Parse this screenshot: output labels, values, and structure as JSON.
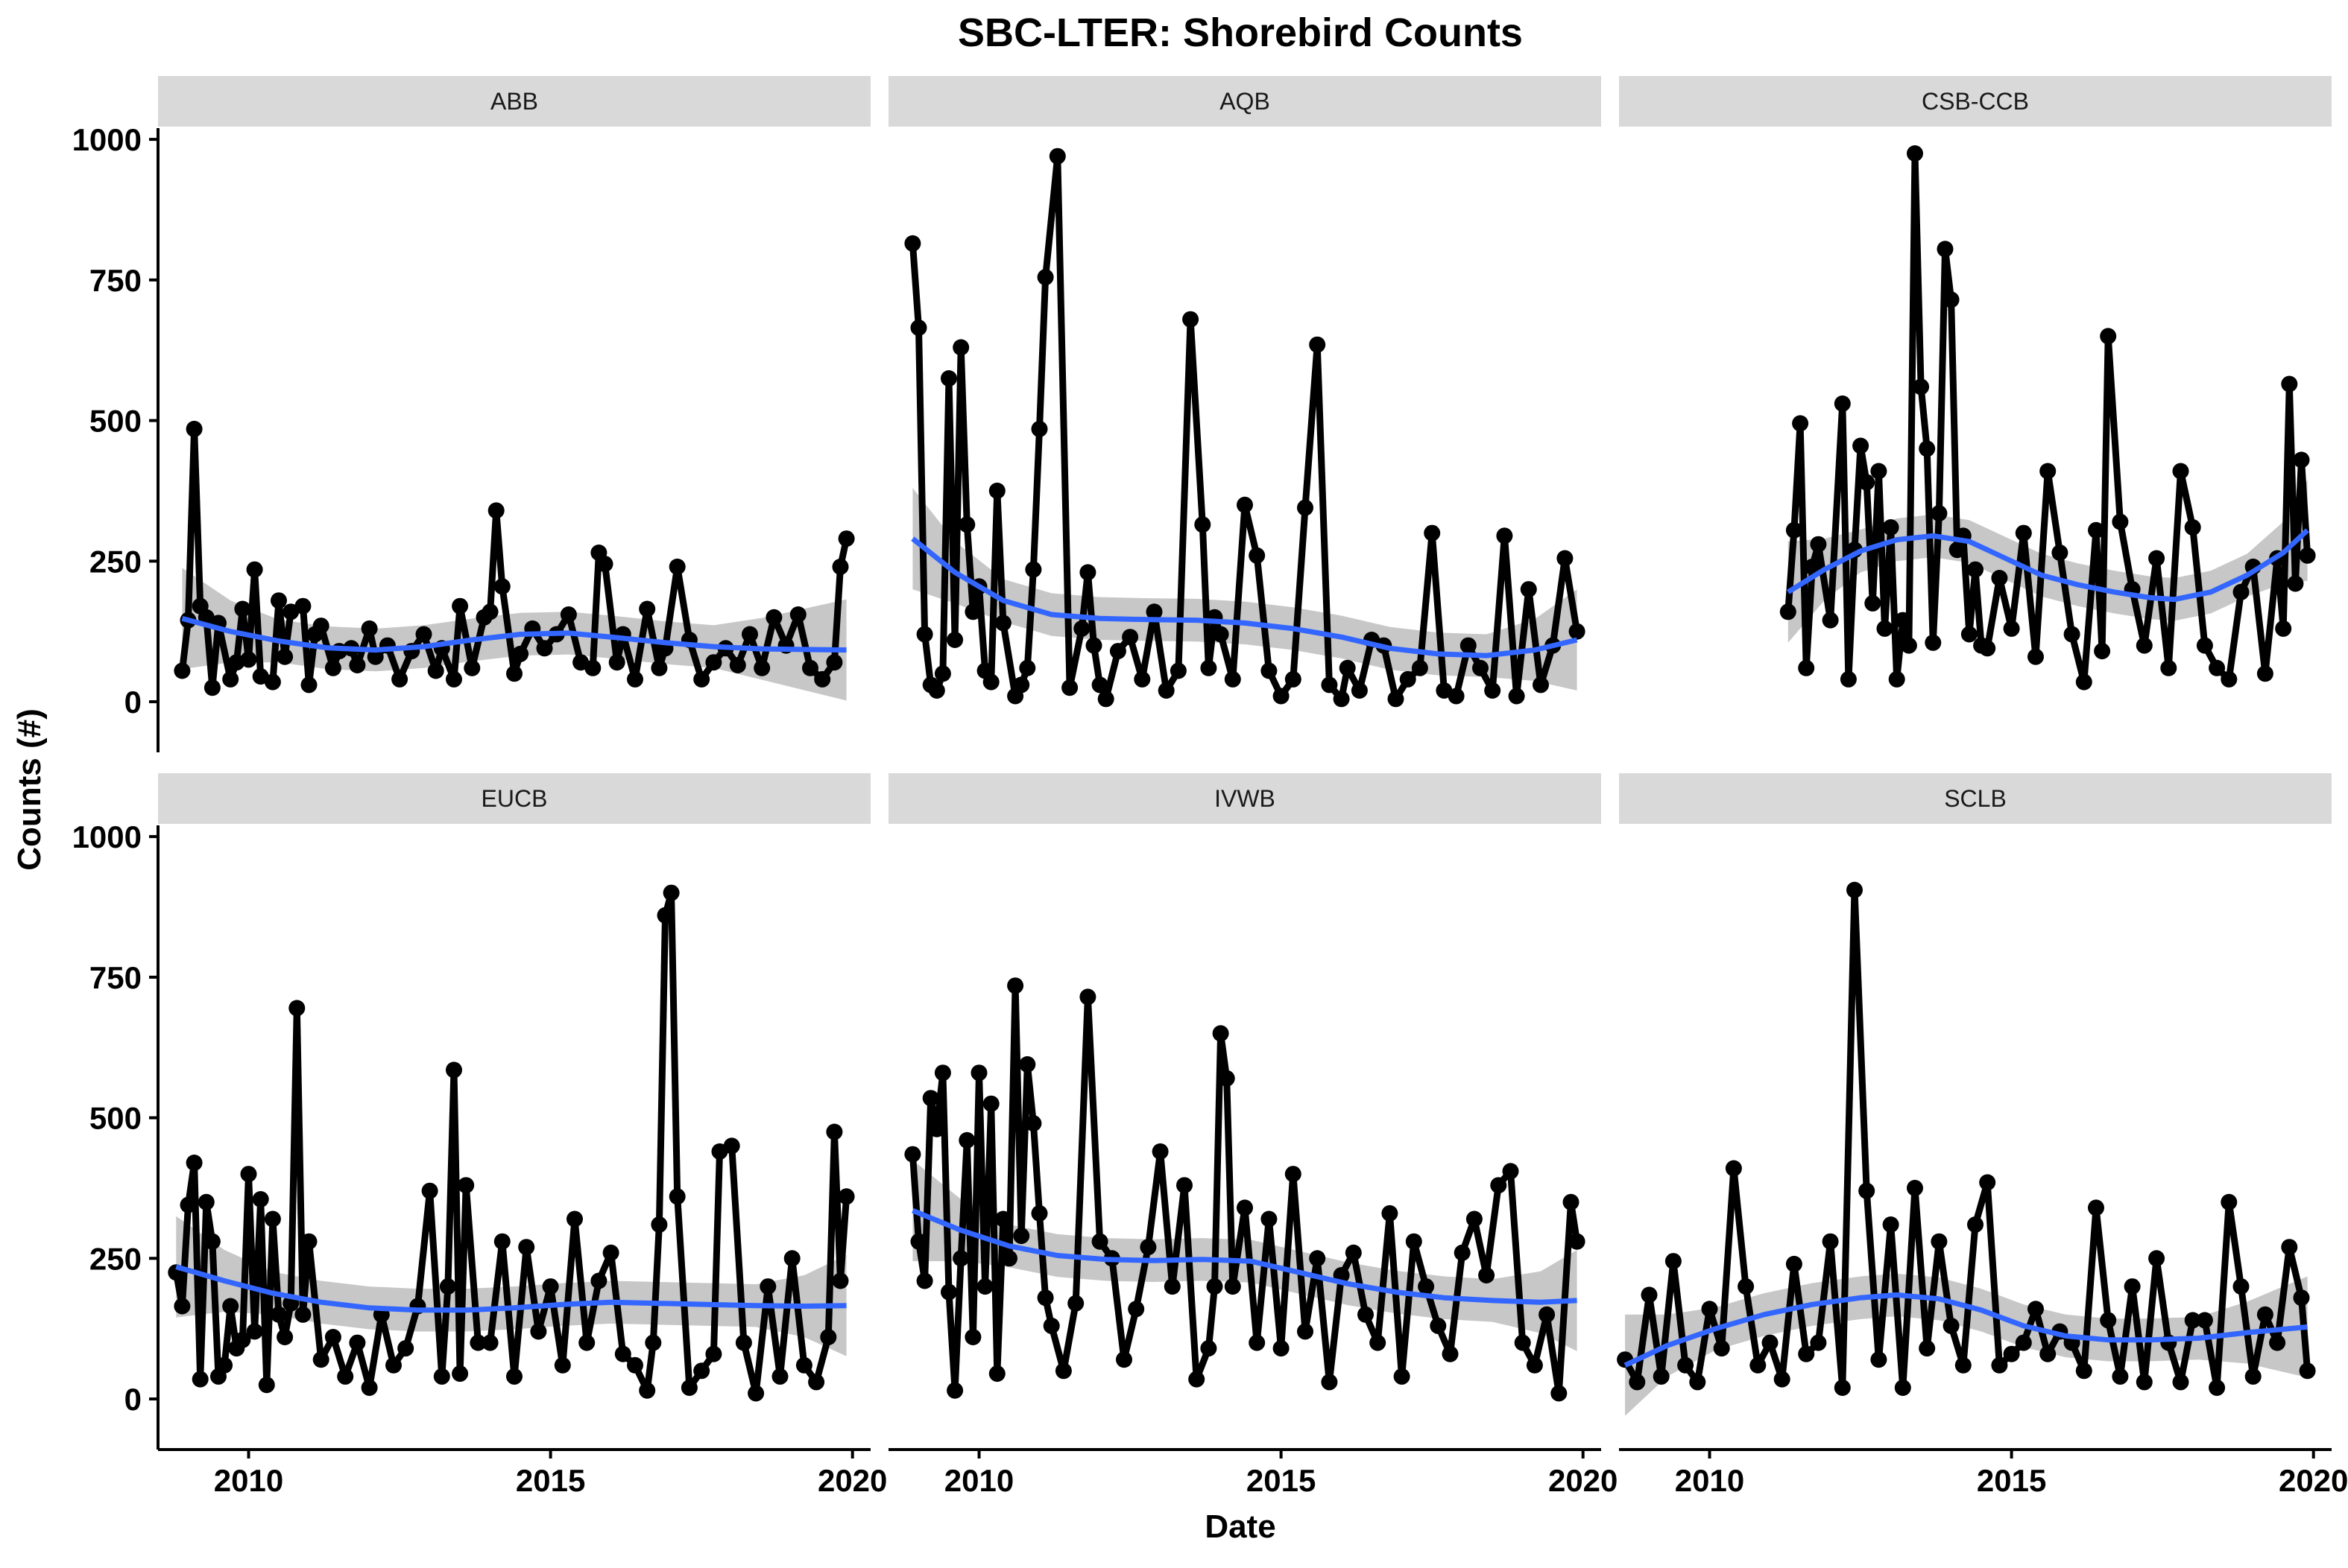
{
  "chart_data": {
    "type": "line",
    "title": "SBC-LTER: Shorebird Counts",
    "xlabel": "Date",
    "ylabel": "Counts (#)",
    "xlim": [
      2008.5,
      2020.3
    ],
    "ylim": [
      -90,
      1020
    ],
    "x_ticks": [
      2010,
      2015,
      2020
    ],
    "y_ticks": [
      0,
      250,
      500,
      750,
      1000
    ],
    "grid": false,
    "colors": {
      "points": "#000000",
      "line": "#000000",
      "smooth": "#3366ff",
      "ribbon": "#999999",
      "strip": "#d9d9d9"
    },
    "facets": [
      {
        "name": "ABB",
        "x": [
          2008.9,
          2009.0,
          2009.1,
          2009.2,
          2009.3,
          2009.4,
          2009.5,
          2009.7,
          2009.8,
          2009.9,
          2010.0,
          2010.1,
          2010.2,
          2010.4,
          2010.5,
          2010.6,
          2010.7,
          2010.9,
          2011.0,
          2011.1,
          2011.2,
          2011.4,
          2011.5,
          2011.7,
          2011.8,
          2012.0,
          2012.1,
          2012.3,
          2012.5,
          2012.7,
          2012.9,
          2013.1,
          2013.2,
          2013.4,
          2013.5,
          2013.7,
          2013.9,
          2014.0,
          2014.1,
          2014.2,
          2014.4,
          2014.5,
          2014.7,
          2014.9,
          2015.1,
          2015.3,
          2015.5,
          2015.7,
          2015.8,
          2015.9,
          2016.1,
          2016.2,
          2016.4,
          2016.6,
          2016.8,
          2016.9,
          2017.1,
          2017.3,
          2017.5,
          2017.7,
          2017.9,
          2018.1,
          2018.3,
          2018.5,
          2018.7,
          2018.9,
          2019.1,
          2019.3,
          2019.5,
          2019.7,
          2019.8,
          2019.9
        ],
        "y": [
          55,
          145,
          485,
          170,
          150,
          25,
          140,
          40,
          70,
          165,
          75,
          235,
          45,
          35,
          180,
          80,
          160,
          170,
          30,
          120,
          135,
          60,
          90,
          95,
          65,
          130,
          80,
          100,
          40,
          90,
          120,
          55,
          95,
          40,
          170,
          60,
          150,
          160,
          340,
          205,
          50,
          85,
          130,
          95,
          120,
          155,
          70,
          60,
          265,
          245,
          70,
          120,
          40,
          165,
          60,
          95,
          240,
          110,
          40,
          70,
          95,
          65,
          120,
          60,
          150,
          100,
          155,
          60,
          40,
          70,
          240,
          290
        ],
        "smooth": [
          148,
          125,
          108,
          96,
          92,
          98,
          110,
          120,
          122,
          114,
          105,
          98,
          94,
          92
        ],
        "smooth_x": [
          2008.9,
          2009.7,
          2010.5,
          2011.3,
          2012.1,
          2012.9,
          2013.7,
          2014.5,
          2015.3,
          2016.1,
          2016.9,
          2017.7,
          2018.5,
          2019.9
        ]
      },
      {
        "name": "AQB",
        "x": [
          2008.9,
          2009.0,
          2009.1,
          2009.2,
          2009.3,
          2009.4,
          2009.5,
          2009.6,
          2009.7,
          2009.8,
          2009.9,
          2010.0,
          2010.1,
          2010.2,
          2010.3,
          2010.4,
          2010.6,
          2010.7,
          2010.8,
          2010.9,
          2011.0,
          2011.1,
          2011.3,
          2011.5,
          2011.7,
          2011.8,
          2011.9,
          2012.0,
          2012.1,
          2012.3,
          2012.5,
          2012.7,
          2012.9,
          2013.1,
          2013.3,
          2013.5,
          2013.7,
          2013.8,
          2013.9,
          2014.0,
          2014.2,
          2014.4,
          2014.6,
          2014.8,
          2015.0,
          2015.2,
          2015.4,
          2015.6,
          2015.8,
          2016.0,
          2016.1,
          2016.3,
          2016.5,
          2016.7,
          2016.9,
          2017.1,
          2017.3,
          2017.5,
          2017.7,
          2017.9,
          2018.1,
          2018.3,
          2018.5,
          2018.7,
          2018.9,
          2019.1,
          2019.3,
          2019.5,
          2019.7,
          2019.9
        ],
        "y": [
          815,
          665,
          120,
          30,
          20,
          50,
          575,
          110,
          630,
          315,
          160,
          205,
          55,
          35,
          375,
          140,
          10,
          30,
          60,
          235,
          485,
          755,
          970,
          25,
          130,
          230,
          100,
          30,
          5,
          90,
          115,
          40,
          160,
          20,
          55,
          680,
          315,
          60,
          150,
          120,
          40,
          350,
          260,
          55,
          10,
          40,
          345,
          635,
          30,
          5,
          60,
          20,
          110,
          100,
          5,
          40,
          60,
          300,
          20,
          10,
          100,
          60,
          20,
          295,
          10,
          200,
          30,
          100,
          255,
          125
        ],
        "smooth": [
          290,
          230,
          180,
          155,
          148,
          146,
          145,
          140,
          130,
          115,
          95,
          85,
          82,
          92,
          110
        ],
        "smooth_x": [
          2008.9,
          2009.6,
          2010.4,
          2011.2,
          2012.0,
          2012.8,
          2013.6,
          2014.4,
          2015.2,
          2016.0,
          2016.8,
          2017.6,
          2018.4,
          2019.2,
          2019.9
        ]
      },
      {
        "name": "CSB-CCB",
        "x": [
          2011.3,
          2011.4,
          2011.5,
          2011.6,
          2011.7,
          2011.8,
          2012.0,
          2012.2,
          2012.3,
          2012.4,
          2012.5,
          2012.6,
          2012.7,
          2012.8,
          2012.9,
          2013.0,
          2013.1,
          2013.2,
          2013.3,
          2013.4,
          2013.5,
          2013.6,
          2013.7,
          2013.8,
          2013.9,
          2014.0,
          2014.1,
          2014.2,
          2014.3,
          2014.4,
          2014.5,
          2014.6,
          2014.8,
          2015.0,
          2015.2,
          2015.4,
          2015.6,
          2015.8,
          2016.0,
          2016.2,
          2016.4,
          2016.5,
          2016.6,
          2016.8,
          2017.0,
          2017.2,
          2017.4,
          2017.6,
          2017.8,
          2018.0,
          2018.2,
          2018.4,
          2018.6,
          2018.8,
          2019.0,
          2019.2,
          2019.4,
          2019.5,
          2019.6,
          2019.7,
          2019.8,
          2019.9
        ],
        "y": [
          160,
          305,
          495,
          60,
          240,
          280,
          145,
          530,
          40,
          270,
          455,
          390,
          175,
          410,
          130,
          310,
          40,
          145,
          100,
          975,
          560,
          450,
          105,
          335,
          805,
          715,
          270,
          295,
          120,
          235,
          100,
          95,
          220,
          130,
          300,
          80,
          410,
          265,
          120,
          35,
          305,
          90,
          650,
          320,
          200,
          100,
          255,
          60,
          410,
          310,
          100,
          60,
          40,
          195,
          240,
          50,
          255,
          130,
          565,
          210,
          430,
          260
        ],
        "smooth": [
          195,
          235,
          268,
          288,
          295,
          285,
          255,
          225,
          208,
          195,
          185,
          182,
          195,
          225,
          265,
          305
        ],
        "smooth_x": [
          2011.3,
          2011.9,
          2012.5,
          2013.1,
          2013.7,
          2014.3,
          2014.9,
          2015.5,
          2016.1,
          2016.7,
          2017.3,
          2017.7,
          2018.3,
          2018.9,
          2019.5,
          2019.9
        ]
      },
      {
        "name": "EUCB",
        "x": [
          2008.8,
          2008.9,
          2009.0,
          2009.1,
          2009.2,
          2009.3,
          2009.4,
          2009.5,
          2009.6,
          2009.7,
          2009.8,
          2009.9,
          2010.0,
          2010.1,
          2010.2,
          2010.3,
          2010.4,
          2010.5,
          2010.6,
          2010.7,
          2010.8,
          2010.9,
          2011.0,
          2011.2,
          2011.4,
          2011.6,
          2011.8,
          2012.0,
          2012.2,
          2012.4,
          2012.6,
          2012.8,
          2013.0,
          2013.2,
          2013.3,
          2013.4,
          2013.5,
          2013.6,
          2013.8,
          2014.0,
          2014.2,
          2014.4,
          2014.6,
          2014.8,
          2015.0,
          2015.2,
          2015.4,
          2015.6,
          2015.8,
          2016.0,
          2016.2,
          2016.4,
          2016.6,
          2016.7,
          2016.8,
          2016.9,
          2017.0,
          2017.1,
          2017.3,
          2017.5,
          2017.7,
          2017.8,
          2018.0,
          2018.2,
          2018.4,
          2018.6,
          2018.8,
          2019.0,
          2019.2,
          2019.4,
          2019.6,
          2019.7,
          2019.8,
          2019.9
        ],
        "y": [
          225,
          165,
          345,
          420,
          35,
          350,
          280,
          40,
          60,
          165,
          90,
          105,
          400,
          120,
          355,
          25,
          320,
          150,
          110,
          170,
          695,
          150,
          280,
          70,
          110,
          40,
          100,
          20,
          150,
          60,
          90,
          165,
          370,
          40,
          200,
          585,
          45,
          380,
          100,
          100,
          280,
          40,
          270,
          120,
          200,
          60,
          320,
          100,
          210,
          260,
          80,
          60,
          15,
          100,
          310,
          860,
          900,
          360,
          20,
          50,
          80,
          440,
          450,
          100,
          10,
          200,
          40,
          250,
          60,
          30,
          110,
          475,
          210,
          360
        ],
        "smooth": [
          235,
          210,
          188,
          172,
          162,
          158,
          158,
          162,
          168,
          172,
          170,
          168,
          166,
          165,
          166
        ],
        "smooth_x": [
          2008.8,
          2009.6,
          2010.4,
          2011.2,
          2012.0,
          2012.8,
          2013.6,
          2014.4,
          2015.2,
          2016.0,
          2016.8,
          2017.6,
          2018.4,
          2019.2,
          2019.9
        ]
      },
      {
        "name": "IVWB",
        "x": [
          2008.9,
          2009.0,
          2009.1,
          2009.2,
          2009.3,
          2009.4,
          2009.5,
          2009.6,
          2009.7,
          2009.8,
          2009.9,
          2010.0,
          2010.1,
          2010.2,
          2010.3,
          2010.4,
          2010.5,
          2010.6,
          2010.7,
          2010.8,
          2010.9,
          2011.0,
          2011.1,
          2011.2,
          2011.4,
          2011.6,
          2011.8,
          2012.0,
          2012.2,
          2012.4,
          2012.6,
          2012.8,
          2013.0,
          2013.2,
          2013.4,
          2013.6,
          2013.8,
          2013.9,
          2014.0,
          2014.1,
          2014.2,
          2014.4,
          2014.6,
          2014.8,
          2015.0,
          2015.2,
          2015.4,
          2015.6,
          2015.8,
          2016.0,
          2016.2,
          2016.4,
          2016.6,
          2016.8,
          2017.0,
          2017.2,
          2017.4,
          2017.6,
          2017.8,
          2018.0,
          2018.2,
          2018.4,
          2018.6,
          2018.8,
          2019.0,
          2019.2,
          2019.4,
          2019.6,
          2019.8,
          2019.9
        ],
        "y": [
          435,
          280,
          210,
          535,
          480,
          580,
          190,
          15,
          250,
          460,
          110,
          580,
          200,
          525,
          45,
          320,
          250,
          735,
          290,
          595,
          490,
          330,
          180,
          130,
          50,
          170,
          715,
          280,
          250,
          70,
          160,
          270,
          440,
          200,
          380,
          35,
          90,
          200,
          650,
          570,
          200,
          340,
          100,
          320,
          90,
          400,
          120,
          250,
          30,
          220,
          260,
          150,
          100,
          330,
          40,
          280,
          200,
          130,
          80,
          260,
          320,
          220,
          380,
          405,
          100,
          60,
          150,
          10,
          350,
          280
        ],
        "smooth": [
          335,
          300,
          272,
          255,
          248,
          246,
          248,
          245,
          225,
          205,
          190,
          180,
          175,
          172,
          175
        ],
        "smooth_x": [
          2008.9,
          2009.7,
          2010.5,
          2011.3,
          2012.1,
          2012.9,
          2013.7,
          2014.5,
          2015.3,
          2016.1,
          2016.9,
          2017.7,
          2018.5,
          2019.3,
          2019.9
        ]
      },
      {
        "name": "SCLB",
        "x": [
          2008.6,
          2008.8,
          2009.0,
          2009.2,
          2009.4,
          2009.6,
          2009.8,
          2010.0,
          2010.2,
          2010.4,
          2010.6,
          2010.8,
          2011.0,
          2011.2,
          2011.4,
          2011.6,
          2011.8,
          2012.0,
          2012.2,
          2012.4,
          2012.6,
          2012.8,
          2013.0,
          2013.2,
          2013.4,
          2013.6,
          2013.8,
          2014.0,
          2014.2,
          2014.4,
          2014.6,
          2014.8,
          2015.0,
          2015.2,
          2015.4,
          2015.6,
          2015.8,
          2016.0,
          2016.2,
          2016.4,
          2016.6,
          2016.8,
          2017.0,
          2017.2,
          2017.4,
          2017.6,
          2017.8,
          2018.0,
          2018.2,
          2018.4,
          2018.6,
          2018.8,
          2019.0,
          2019.2,
          2019.4,
          2019.6,
          2019.8,
          2019.9
        ],
        "y": [
          70,
          30,
          185,
          40,
          245,
          60,
          30,
          160,
          90,
          410,
          200,
          60,
          100,
          35,
          240,
          80,
          100,
          280,
          20,
          905,
          370,
          70,
          310,
          20,
          375,
          90,
          280,
          130,
          60,
          310,
          385,
          60,
          80,
          100,
          160,
          80,
          120,
          100,
          50,
          340,
          140,
          40,
          200,
          30,
          250,
          100,
          30,
          140,
          140,
          20,
          350,
          200,
          40,
          150,
          100,
          270,
          180,
          50
        ],
        "smooth": [
          60,
          95,
          125,
          150,
          168,
          180,
          185,
          178,
          158,
          130,
          112,
          105,
          105,
          108,
          118,
          128
        ],
        "smooth_x": [
          2008.6,
          2009.3,
          2010.1,
          2010.9,
          2011.7,
          2012.5,
          2013.1,
          2013.8,
          2014.5,
          2015.2,
          2015.9,
          2016.6,
          2017.3,
          2018.1,
          2018.9,
          2019.9
        ]
      }
    ]
  }
}
